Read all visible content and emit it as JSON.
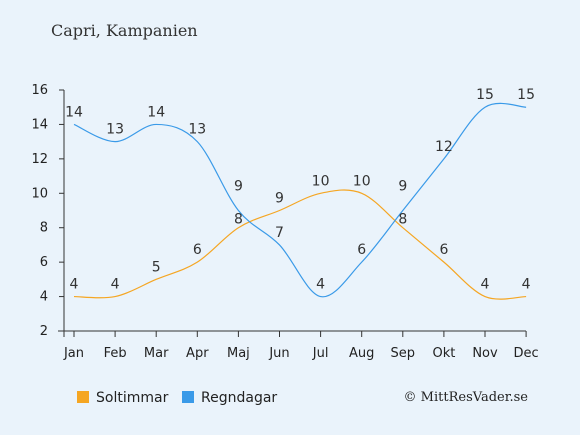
{
  "title": "Capri, Kampanien",
  "copyright": "© MittResVader.se",
  "chart_data": {
    "type": "line",
    "categories": [
      "Jan",
      "Feb",
      "Mar",
      "Apr",
      "Maj",
      "Jun",
      "Jul",
      "Aug",
      "Sep",
      "Okt",
      "Nov",
      "Dec"
    ],
    "ylim": [
      2,
      16
    ],
    "yticks": [
      2,
      4,
      6,
      8,
      10,
      12,
      14,
      16
    ],
    "grid": false,
    "legend_position": "bottom",
    "series": [
      {
        "name": "Soltimmar",
        "color": "#f5a623",
        "values": [
          4,
          4,
          5,
          6,
          8,
          9,
          10,
          10,
          8,
          6,
          4,
          4
        ]
      },
      {
        "name": "Regndagar",
        "color": "#3a9ae8",
        "values": [
          14,
          13,
          14,
          13,
          9,
          7,
          4,
          6,
          9,
          12,
          15,
          15
        ]
      }
    ]
  }
}
